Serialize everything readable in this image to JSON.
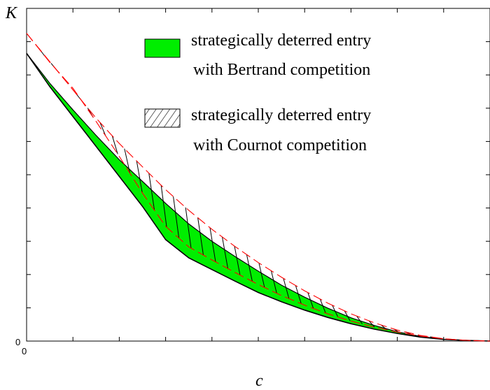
{
  "chart_data": {
    "type": "area",
    "xlabel": "c",
    "ylabel": "K",
    "x_ticks": [
      "0"
    ],
    "y_ticks": [
      "0"
    ],
    "xlim": [
      0,
      1
    ],
    "ylim": [
      0,
      1
    ],
    "grid": false,
    "legend_placement": "top-right",
    "legend": [
      {
        "line1": "strategically deterred entry",
        "line2": "with Bertrand competition",
        "style": "solid-fill",
        "color": "#00ee00"
      },
      {
        "line1": "strategically deterred entry",
        "line2": "with Cournot competition",
        "style": "hatched",
        "color": "#000000"
      }
    ],
    "series": [
      {
        "role": "bertrand-lower-boundary",
        "color": "#000000",
        "x": [
          0,
          0.05,
          0.1,
          0.15,
          0.2,
          0.25,
          0.3,
          0.35,
          0.4,
          0.45,
          0.5,
          0.55,
          0.6,
          0.65,
          0.7,
          0.75,
          0.8,
          0.85,
          0.9,
          0.95,
          1.0
        ],
        "y": [
          0.865,
          0.765,
          0.675,
          0.585,
          0.495,
          0.405,
          0.305,
          0.25,
          0.215,
          0.18,
          0.146,
          0.118,
          0.093,
          0.071,
          0.052,
          0.036,
          0.023,
          0.012,
          0.005,
          0.002,
          0.0
        ]
      },
      {
        "role": "bertrand-upper-boundary",
        "color": "#000000",
        "x": [
          0,
          0.05,
          0.1,
          0.15,
          0.2,
          0.25,
          0.3,
          0.35,
          0.4,
          0.45,
          0.5,
          0.55,
          0.6,
          0.65,
          0.7,
          0.75,
          0.8,
          0.85,
          0.9,
          0.95,
          1.0
        ],
        "y": [
          0.865,
          0.775,
          0.695,
          0.618,
          0.545,
          0.48,
          0.414,
          0.352,
          0.3,
          0.254,
          0.21,
          0.168,
          0.132,
          0.099,
          0.07,
          0.047,
          0.028,
          0.014,
          0.005,
          0.002,
          0.0
        ]
      },
      {
        "role": "cournot-lower-boundary",
        "color": "#ff0000",
        "x": [
          0,
          0.05,
          0.1,
          0.15,
          0.2,
          0.25,
          0.3,
          0.35,
          0.4,
          0.45,
          0.5,
          0.55,
          0.6,
          0.65,
          0.7,
          0.75,
          0.8,
          0.85,
          0.9,
          0.95,
          1.0
        ],
        "y": [
          0.925,
          0.838,
          0.76,
          0.66,
          0.555,
          0.445,
          0.345,
          0.283,
          0.244,
          0.206,
          0.17,
          0.137,
          0.108,
          0.082,
          0.06,
          0.042,
          0.027,
          0.015,
          0.007,
          0.002,
          0.0
        ]
      },
      {
        "role": "cournot-upper-boundary",
        "color": "#ff0000",
        "x": [
          0,
          0.05,
          0.1,
          0.15,
          0.2,
          0.25,
          0.3,
          0.35,
          0.4,
          0.45,
          0.5,
          0.55,
          0.6,
          0.65,
          0.7,
          0.75,
          0.8,
          0.85,
          0.9,
          0.95,
          1.0
        ],
        "y": [
          0.925,
          0.84,
          0.755,
          0.67,
          0.594,
          0.524,
          0.455,
          0.393,
          0.336,
          0.284,
          0.236,
          0.192,
          0.151,
          0.114,
          0.082,
          0.055,
          0.033,
          0.017,
          0.007,
          0.002,
          0.0
        ]
      }
    ]
  }
}
